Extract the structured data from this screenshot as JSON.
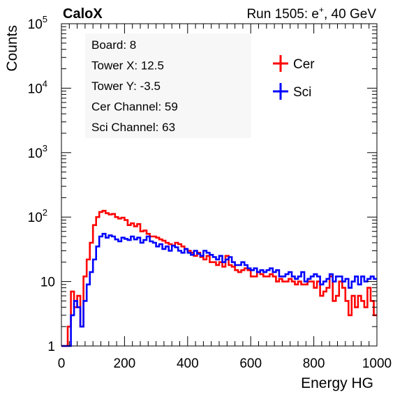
{
  "chart_data": {
    "type": "line",
    "label_left": "CaloX",
    "label_right_prefix": "Run 1505: e",
    "label_right_sup": "+",
    "label_right_suffix": ", 40 GeV",
    "xlabel": "Energy HG",
    "ylabel": "Counts",
    "xlim": [
      0,
      1000
    ],
    "ylim": [
      1,
      100000
    ],
    "yscale": "log",
    "x_ticks": [
      "0",
      "200",
      "400",
      "600",
      "800",
      "1000"
    ],
    "y_ticks": [
      {
        "base": "1",
        "exp": ""
      },
      {
        "base": "10",
        "exp": ""
      },
      {
        "base": "10",
        "exp": "2"
      },
      {
        "base": "10",
        "exp": "3"
      },
      {
        "base": "10",
        "exp": "4"
      },
      {
        "base": "10",
        "exp": "5"
      }
    ],
    "info_box": [
      "Board: 8",
      "Tower X: 12.5",
      "Tower Y: -3.5",
      "Cer Channel: 59",
      "Sci Channel: 63"
    ],
    "legend_position": "top-right",
    "grid": false,
    "series": [
      {
        "name": "Cer",
        "color": "#ff0000",
        "x": [
          0,
          10,
          20,
          30,
          40,
          50,
          60,
          70,
          80,
          90,
          100,
          110,
          120,
          130,
          140,
          150,
          160,
          170,
          180,
          190,
          200,
          210,
          220,
          230,
          240,
          250,
          260,
          270,
          280,
          290,
          300,
          310,
          320,
          330,
          340,
          350,
          360,
          370,
          380,
          390,
          400,
          410,
          420,
          430,
          440,
          450,
          460,
          470,
          480,
          490,
          500,
          510,
          520,
          530,
          540,
          550,
          560,
          570,
          580,
          590,
          600,
          610,
          620,
          630,
          640,
          650,
          660,
          670,
          680,
          690,
          700,
          710,
          720,
          730,
          740,
          750,
          760,
          770,
          780,
          790,
          800,
          810,
          820,
          830,
          840,
          850,
          860,
          870,
          880,
          890,
          900,
          910,
          920,
          930,
          940,
          950,
          960,
          970,
          980,
          990,
          1000
        ],
        "y": [
          1,
          1,
          2,
          7,
          4,
          6,
          2,
          12,
          22,
          40,
          75,
          100,
          120,
          125,
          115,
          110,
          112,
          100,
          95,
          98,
          90,
          75,
          80,
          72,
          78,
          60,
          62,
          55,
          50,
          50,
          48,
          45,
          43,
          40,
          38,
          36,
          40,
          38,
          35,
          32,
          30,
          28,
          25,
          28,
          24,
          22,
          25,
          20,
          20,
          18,
          20,
          17,
          25,
          18,
          17,
          15,
          14,
          15,
          16,
          15,
          12,
          12,
          14,
          13,
          12,
          12,
          13,
          12,
          10,
          11,
          10,
          10,
          11,
          10,
          9,
          10,
          9,
          9,
          10,
          10,
          8,
          10,
          6,
          7,
          8,
          12,
          5,
          6,
          10,
          8,
          5,
          3,
          6,
          4,
          6,
          5,
          4,
          8,
          5,
          3,
          3
        ]
      },
      {
        "name": "Sci",
        "color": "#0000ff",
        "x": [
          0,
          10,
          20,
          30,
          40,
          50,
          60,
          70,
          80,
          90,
          100,
          110,
          120,
          130,
          140,
          150,
          160,
          170,
          180,
          190,
          200,
          210,
          220,
          230,
          240,
          250,
          260,
          270,
          280,
          290,
          300,
          310,
          320,
          330,
          340,
          350,
          360,
          370,
          380,
          390,
          400,
          410,
          420,
          430,
          440,
          450,
          460,
          470,
          480,
          490,
          500,
          510,
          520,
          530,
          540,
          550,
          560,
          570,
          580,
          590,
          600,
          610,
          620,
          630,
          640,
          650,
          660,
          670,
          680,
          690,
          700,
          710,
          720,
          730,
          740,
          750,
          760,
          770,
          780,
          790,
          800,
          810,
          820,
          830,
          840,
          850,
          860,
          870,
          880,
          890,
          900,
          910,
          920,
          930,
          940,
          950,
          960,
          970,
          980,
          990,
          1000
        ],
        "y": [
          1,
          1,
          1,
          3,
          5,
          4,
          2,
          5,
          9,
          14,
          22,
          35,
          50,
          55,
          48,
          52,
          50,
          45,
          42,
          48,
          46,
          44,
          50,
          45,
          48,
          40,
          44,
          50,
          42,
          40,
          35,
          38,
          32,
          35,
          30,
          36,
          34,
          30,
          28,
          32,
          28,
          26,
          30,
          27,
          25,
          30,
          28,
          26,
          24,
          22,
          25,
          20,
          22,
          24,
          20,
          18,
          18,
          20,
          18,
          16,
          15,
          16,
          14,
          15,
          14,
          15,
          16,
          14,
          15,
          12,
          12,
          13,
          14,
          12,
          11,
          12,
          14,
          10,
          11,
          12,
          13,
          12,
          9,
          10,
          11,
          13,
          10,
          12,
          12,
          10,
          11,
          8,
          10,
          12,
          9,
          12,
          10,
          11,
          12,
          11,
          10
        ]
      }
    ]
  }
}
